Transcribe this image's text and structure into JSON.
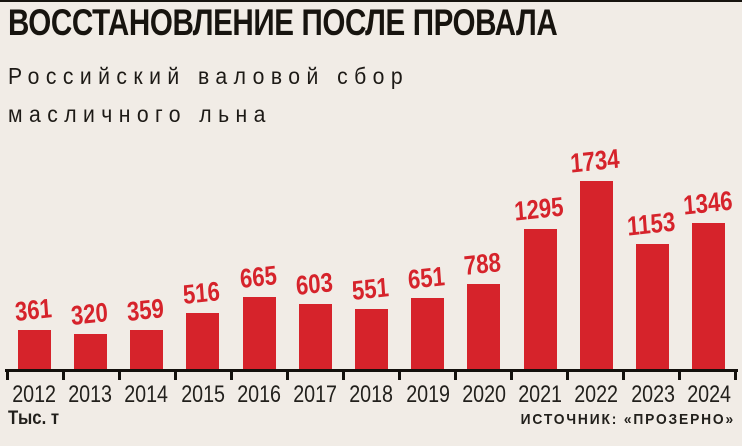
{
  "title": "ВОССТАНОВЛЕНИЕ ПОСЛЕ ПРОВАЛА",
  "subtitle_line1": "Российский валовой сбор",
  "subtitle_line2": "масличного льна",
  "footer": {
    "unit_label": "Тыс. т",
    "source_label": "ИСТОЧНИК: «ПРОЗЕРНО»"
  },
  "colors": {
    "bar": "#d6232b",
    "value_label": "#d6232b",
    "background": "#f1ece6",
    "text": "#17140f"
  },
  "chart_data": {
    "type": "bar",
    "title": "ВОССТАНОВЛЕНИЕ ПОСЛЕ ПРОВАЛА",
    "subtitle": "Российский валовой сбор масличного льна",
    "categories": [
      "2012",
      "2013",
      "2014",
      "2015",
      "2016",
      "2017",
      "2018",
      "2019",
      "2020",
      "2021",
      "2022",
      "2023",
      "2024"
    ],
    "values": [
      361,
      320,
      359,
      516,
      665,
      603,
      551,
      651,
      788,
      1295,
      1734,
      1153,
      1346
    ],
    "ylabel": "Тыс. т",
    "xlabel": "",
    "source": "ИСТОЧНИК: «ПРОЗЕРНО»",
    "ylim": [
      0,
      1800
    ],
    "grid": false,
    "legend": false,
    "data_labels": true
  }
}
